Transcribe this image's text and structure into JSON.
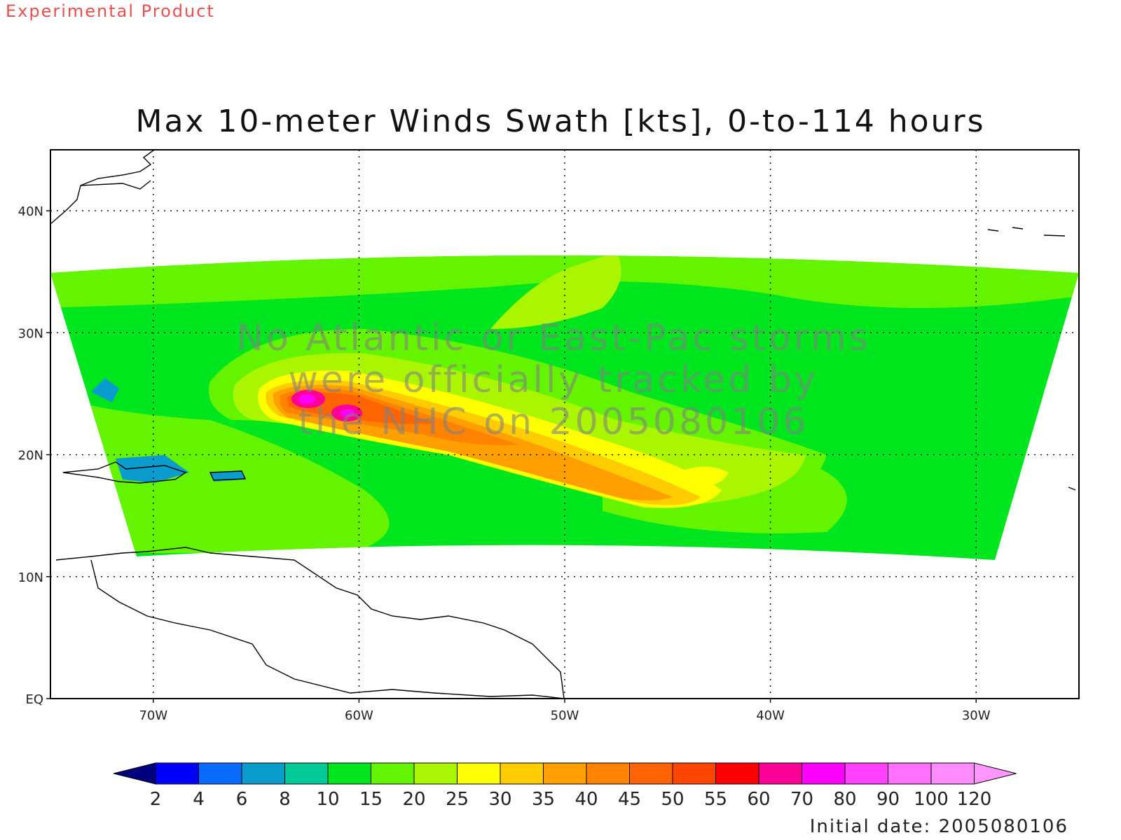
{
  "header": {
    "experimental_label": "Experimental Product",
    "title": "Max 10-meter Winds Swath [kts], 0-to-114 hours",
    "initial_date": "Initial date: 2005080106"
  },
  "watermark": {
    "lines": [
      "No Atlantic or East-Pac storms",
      "were officially tracked by",
      "the NHC on 2005080106"
    ]
  },
  "map": {
    "lon_range": [
      -75,
      -25
    ],
    "lat_range": [
      0,
      45
    ],
    "lon_ticks": [
      {
        "value": -70,
        "label": "70W"
      },
      {
        "value": -60,
        "label": "60W"
      },
      {
        "value": -50,
        "label": "50W"
      },
      {
        "value": -40,
        "label": "40W"
      },
      {
        "value": -30,
        "label": "30W"
      }
    ],
    "lat_ticks": [
      {
        "value": 0,
        "label": "EQ"
      },
      {
        "value": 10,
        "label": "10N"
      },
      {
        "value": 20,
        "label": "20N"
      },
      {
        "value": 30,
        "label": "30N"
      },
      {
        "value": 40,
        "label": "40N"
      }
    ],
    "grid": "dotted",
    "max_wind_center_lon": -62.5,
    "max_wind_center_lat": 24.3
  },
  "colorbar": {
    "labels": [
      "2",
      "4",
      "6",
      "8",
      "10",
      "15",
      "20",
      "25",
      "30",
      "35",
      "40",
      "45",
      "50",
      "55",
      "60",
      "70",
      "80",
      "90",
      "100",
      "120"
    ],
    "colors": [
      "#00007f",
      "#0000ff",
      "#0a6cff",
      "#0a9ccc",
      "#00c896",
      "#00e61e",
      "#64f400",
      "#aaf500",
      "#ffff00",
      "#ffcc00",
      "#ffa000",
      "#ff8200",
      "#ff6400",
      "#ff4600",
      "#ff0000",
      "#ff0096",
      "#ff00ff",
      "#ff40ff",
      "#ff70ff",
      "#ff8cff",
      "#ff96ff"
    ],
    "shading": {
      "background": "#00e61e",
      "upper_band": "#64f400",
      "mid_band": "#aaf500",
      "core_colors": [
        "#ffff00",
        "#ffcc00",
        "#ffa000",
        "#ff8200",
        "#ff6400",
        "#ff0096",
        "#ff00ff"
      ]
    }
  }
}
